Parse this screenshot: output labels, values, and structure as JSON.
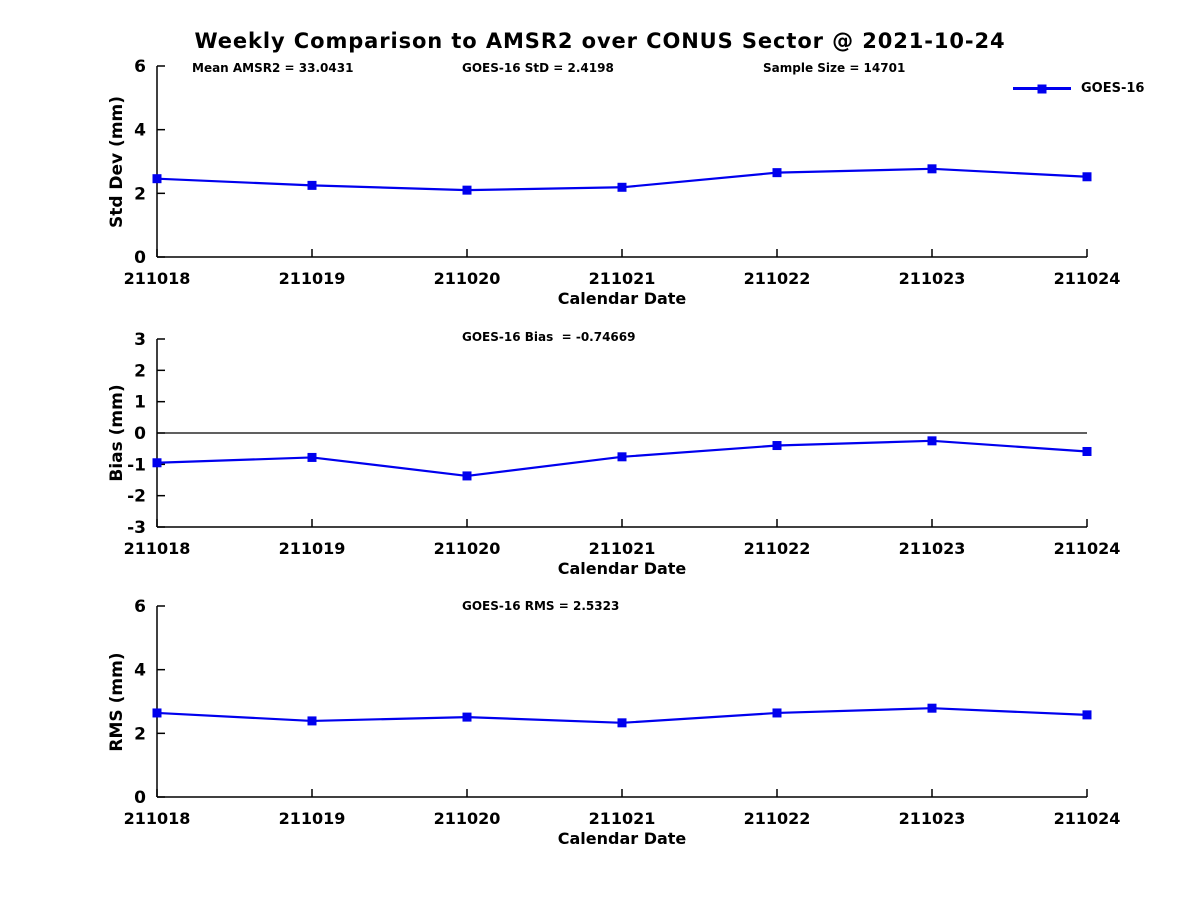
{
  "title": "Weekly Comparison to AMSR2 over CONUS Sector @ 2021-10-24",
  "colors": {
    "series": "#0000ee",
    "axis": "#000000",
    "background": "#ffffff"
  },
  "chart_data": [
    {
      "type": "line",
      "panel": "std-dev",
      "annotations": [
        "Mean AMSR2 = 33.0431",
        "GOES-16 StD = 2.4198",
        "Sample Size = 14701"
      ],
      "categories": [
        "211018",
        "211019",
        "211020",
        "211021",
        "211022",
        "211023",
        "211024"
      ],
      "series": [
        {
          "name": "GOES-16",
          "values": [
            2.46,
            2.25,
            2.1,
            2.19,
            2.65,
            2.77,
            2.52
          ]
        }
      ],
      "xlabel": "Calendar Date",
      "ylabel": "Std Dev (mm)",
      "ylim": [
        0,
        6
      ],
      "yticks": [
        0,
        2,
        4,
        6
      ],
      "grid": false,
      "zero_line": false,
      "legend": {
        "label": "GOES-16",
        "position": "top-right"
      },
      "marker": "square"
    },
    {
      "type": "line",
      "panel": "bias",
      "annotations": [
        "GOES-16 Bias  = -0.74669"
      ],
      "categories": [
        "211018",
        "211019",
        "211020",
        "211021",
        "211022",
        "211023",
        "211024"
      ],
      "series": [
        {
          "name": "GOES-16",
          "values": [
            -0.95,
            -0.78,
            -1.37,
            -0.76,
            -0.4,
            -0.25,
            -0.59
          ]
        }
      ],
      "xlabel": "Calendar Date",
      "ylabel": "Bias (mm)",
      "ylim": [
        -3,
        3
      ],
      "yticks": [
        -3,
        -2,
        -1,
        0,
        1,
        2,
        3
      ],
      "grid": false,
      "zero_line": true,
      "marker": "square"
    },
    {
      "type": "line",
      "panel": "rms",
      "annotations": [
        "GOES-16 RMS = 2.5323"
      ],
      "categories": [
        "211018",
        "211019",
        "211020",
        "211021",
        "211022",
        "211023",
        "211024"
      ],
      "series": [
        {
          "name": "GOES-16",
          "values": [
            2.64,
            2.39,
            2.51,
            2.33,
            2.64,
            2.79,
            2.58
          ]
        }
      ],
      "xlabel": "Calendar Date",
      "ylabel": "RMS (mm)",
      "ylim": [
        0,
        6
      ],
      "yticks": [
        0,
        2,
        4,
        6
      ],
      "grid": false,
      "zero_line": false,
      "marker": "square"
    }
  ]
}
